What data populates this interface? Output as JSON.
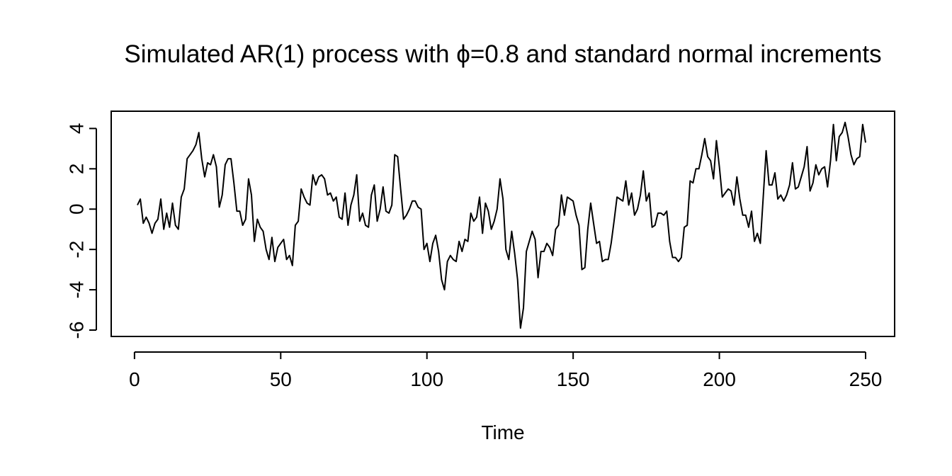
{
  "chart_data": {
    "type": "line",
    "title": "Simulated AR(1) process with ϕ=0.8 and standard normal increments",
    "xlabel": "Time",
    "ylabel": "",
    "xlim": [
      1,
      250
    ],
    "ylim": [
      -6,
      4.4
    ],
    "x_ticks": [
      0,
      50,
      100,
      150,
      200,
      250
    ],
    "y_ticks": [
      -6,
      -4,
      -2,
      0,
      2,
      4
    ],
    "x_tick_labels": [
      "0",
      "50",
      "100",
      "150",
      "200",
      "250"
    ],
    "y_tick_labels": [
      "-6",
      "-4",
      "-2",
      "0",
      "2",
      "4"
    ],
    "grid": false,
    "legend": "none",
    "line_color": "#000000",
    "series": [
      {
        "x_start": 1,
        "x_step": 1,
        "values": [
          0.2,
          0.5,
          -0.7,
          -0.4,
          -0.7,
          -1.2,
          -0.7,
          -0.5,
          0.5,
          -1.0,
          -0.2,
          -0.9,
          0.3,
          -0.8,
          -1.0,
          0.6,
          1.0,
          2.5,
          2.7,
          2.9,
          3.2,
          3.8,
          2.5,
          1.6,
          2.3,
          2.2,
          2.7,
          2.1,
          0.1,
          0.7,
          2.2,
          2.5,
          2.5,
          1.3,
          -0.1,
          -0.1,
          -0.8,
          -0.5,
          1.5,
          0.7,
          -1.6,
          -0.5,
          -0.9,
          -1.1,
          -2.0,
          -2.5,
          -1.4,
          -2.6,
          -1.9,
          -1.7,
          -1.5,
          -2.5,
          -2.3,
          -2.8,
          -0.8,
          -0.6,
          1.0,
          0.6,
          0.3,
          0.2,
          1.7,
          1.2,
          1.6,
          1.7,
          1.5,
          0.7,
          0.8,
          0.4,
          0.6,
          -0.4,
          -0.5,
          0.8,
          -0.8,
          0.2,
          0.7,
          1.7,
          -0.6,
          -0.2,
          -0.8,
          -0.9,
          0.7,
          1.2,
          -0.6,
          0.0,
          1.1,
          -0.1,
          -0.2,
          0.2,
          2.7,
          2.6,
          1.0,
          -0.5,
          -0.3,
          0.0,
          0.4,
          0.4,
          0.1,
          0.0,
          -2.0,
          -1.7,
          -2.6,
          -1.7,
          -1.3,
          -2.1,
          -3.5,
          -4.0,
          -2.6,
          -2.3,
          -2.5,
          -2.6,
          -1.6,
          -2.1,
          -1.5,
          -1.6,
          -0.2,
          -0.6,
          -0.4,
          0.6,
          -1.2,
          0.3,
          -0.1,
          -1.0,
          -0.6,
          0.0,
          1.5,
          0.5,
          -2.0,
          -2.5,
          -1.1,
          -2.2,
          -3.5,
          -5.9,
          -4.9,
          -2.1,
          -1.6,
          -1.1,
          -1.5,
          -3.4,
          -2.1,
          -2.1,
          -1.7,
          -1.9,
          -2.3,
          -1.0,
          -0.8,
          0.7,
          -0.3,
          0.6,
          0.5,
          0.4,
          -0.3,
          -0.8,
          -3.0,
          -2.9,
          -1.0,
          0.3,
          -0.7,
          -1.7,
          -1.6,
          -2.6,
          -2.5,
          -2.5,
          -1.7,
          -0.6,
          0.6,
          0.5,
          0.4,
          1.4,
          0.2,
          0.8,
          -0.3,
          0.0,
          0.7,
          1.9,
          0.4,
          0.8,
          -0.9,
          -0.8,
          -0.2,
          -0.2,
          -0.3,
          -0.1,
          -1.6,
          -2.4,
          -2.4,
          -2.6,
          -2.4,
          -0.9,
          -0.8,
          1.4,
          1.3,
          2.0,
          2.0,
          2.7,
          3.5,
          2.6,
          2.4,
          1.5,
          3.4,
          2.1,
          0.6,
          0.8,
          1.0,
          0.9,
          0.2,
          1.6,
          0.5,
          -0.3,
          -0.3,
          -0.9,
          -0.1,
          -1.6,
          -1.2,
          -1.7,
          0.6,
          2.9,
          1.2,
          1.2,
          1.8,
          0.5,
          0.7,
          0.4,
          0.7,
          1.2,
          2.3,
          1.0,
          1.1,
          1.6,
          2.1,
          3.1,
          0.9,
          1.3,
          2.2,
          1.7,
          2.0,
          2.1,
          1.1,
          2.4,
          4.2,
          2.4,
          3.6,
          3.8,
          4.3,
          3.6,
          2.7,
          2.2,
          2.5,
          2.6,
          4.2,
          3.3
        ]
      }
    ]
  }
}
